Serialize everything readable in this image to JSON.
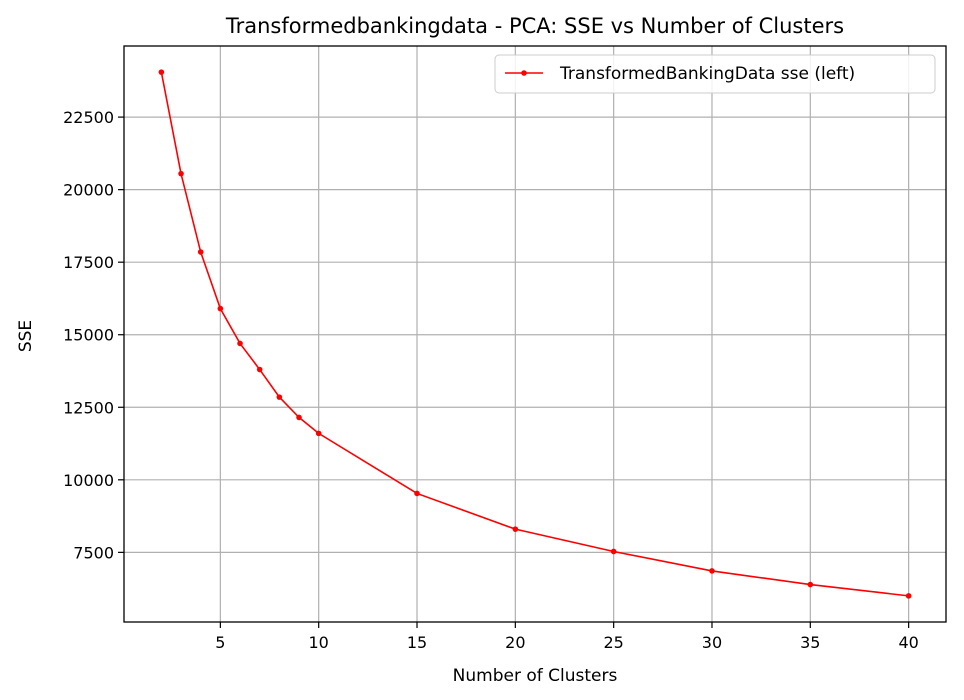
{
  "chart_data": {
    "type": "line",
    "title": "Transformedbankingdata - PCA: SSE vs Number of Clusters",
    "xlabel": "Number of Clusters",
    "ylabel": "SSE",
    "xlim": [
      0.1,
      41.9
    ],
    "ylim": [
      5100,
      24950
    ],
    "xticks": [
      5,
      10,
      15,
      20,
      25,
      30,
      35,
      40
    ],
    "yticks": [
      7500,
      10000,
      12500,
      15000,
      17500,
      20000,
      22500
    ],
    "grid": true,
    "legend_position": "top-right",
    "series": [
      {
        "name": "TransformedBankingData sse (left)",
        "color": "#ff0000",
        "marker": "circle",
        "x": [
          2,
          3,
          4,
          5,
          6,
          7,
          8,
          9,
          10,
          15,
          20,
          25,
          30,
          35,
          40
        ],
        "y": [
          24050,
          20550,
          17850,
          15900,
          14700,
          13800,
          12850,
          12150,
          11600,
          9530,
          8300,
          7530,
          6860,
          6390,
          6000
        ]
      }
    ]
  }
}
